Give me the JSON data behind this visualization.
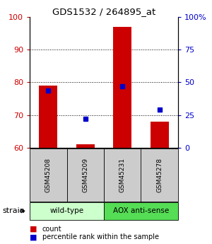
{
  "title": "GDS1532 / 264895_at",
  "samples": [
    "GSM45208",
    "GSM45209",
    "GSM45231",
    "GSM45278"
  ],
  "red_values": [
    79,
    61,
    97,
    68
  ],
  "blue_values": [
    44,
    22,
    47,
    29
  ],
  "ylim_left": [
    60,
    100
  ],
  "ylim_right": [
    0,
    100
  ],
  "yticks_left": [
    60,
    70,
    80,
    90,
    100
  ],
  "yticks_right": [
    0,
    25,
    50,
    75,
    100
  ],
  "ytick_labels_right": [
    "0",
    "25",
    "50",
    "75",
    "100%"
  ],
  "bar_color": "#cc0000",
  "marker_color": "#0000cc",
  "bar_bottom": 60,
  "group_labels": [
    "wild-type",
    "AOX anti-sense"
  ],
  "group_colors": [
    "#ccffcc",
    "#55dd55"
  ],
  "strain_label": "strain",
  "legend_count": "count",
  "legend_percentile": "percentile rank within the sample",
  "tick_label_color_left": "#cc0000",
  "tick_label_color_right": "#0000cc",
  "sample_box_color": "#cccccc",
  "bar_width": 0.5
}
